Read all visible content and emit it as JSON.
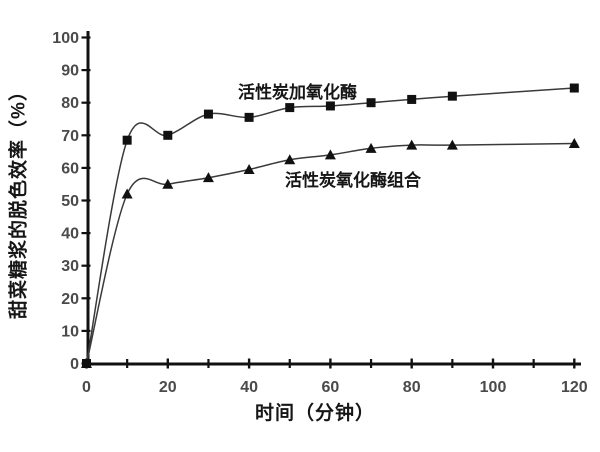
{
  "chart_data": {
    "type": "line",
    "title": "",
    "xlabel": "时间（分钟）",
    "ylabel": "甜菜糖浆的脱色效率（%）",
    "xlim": [
      0,
      120
    ],
    "ylim": [
      0,
      100
    ],
    "grid": "off",
    "legend_position": "inline-annotations",
    "x_major_ticks": [
      0,
      20,
      40,
      60,
      80,
      100,
      120
    ],
    "x_minor_ticks": [
      10,
      30,
      50,
      70,
      90,
      110
    ],
    "y_ticks": [
      0,
      10,
      20,
      30,
      40,
      50,
      60,
      70,
      80,
      90,
      100
    ],
    "series": [
      {
        "name": "活性炭加氧化酶",
        "marker": "square",
        "x": [
          0,
          10,
          20,
          30,
          40,
          50,
          60,
          70,
          80,
          90,
          120
        ],
        "y": [
          0,
          68.5,
          70,
          76.5,
          75.5,
          78.5,
          79,
          80,
          81,
          82,
          84.5
        ]
      },
      {
        "name": "活性炭氧化酶组合",
        "marker": "triangle",
        "x": [
          0,
          10,
          20,
          30,
          40,
          50,
          60,
          70,
          80,
          90,
          120
        ],
        "y": [
          0,
          52,
          55,
          57,
          59.5,
          62.5,
          64,
          66,
          67,
          67,
          67.5
        ]
      }
    ],
    "colors": {
      "axis": "#111111",
      "line": "#3a3a3a",
      "marker": "#111111",
      "tick_label": "#4a4a4a",
      "text": "#161616"
    }
  }
}
